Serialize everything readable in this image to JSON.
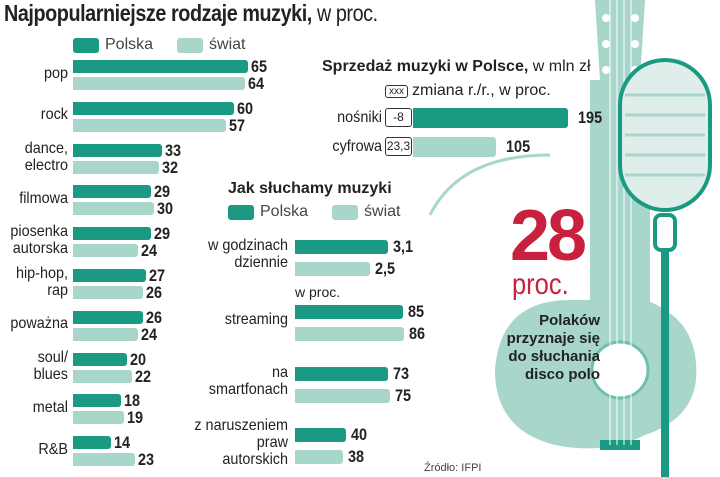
{
  "colors": {
    "polska": "#1a9a83",
    "swiat": "#a9d6ca",
    "accent": "#c8203f"
  },
  "chart_data": [
    {
      "type": "bar",
      "title": "Najpopularniejsze rodzaje muzyki,",
      "subtitle": "w proc.",
      "legend": [
        "Polska",
        "świat"
      ],
      "categories": [
        "pop",
        "rock",
        "dance,\nelectro",
        "filmowa",
        "piosenka\nautorska",
        "hip-hop,\nrap",
        "poważna",
        "soul/\nblues",
        "metal",
        "R&B"
      ],
      "series": [
        {
          "name": "Polska",
          "values": [
            65,
            60,
            33,
            29,
            29,
            27,
            26,
            20,
            18,
            14
          ]
        },
        {
          "name": "świat",
          "values": [
            64,
            57,
            32,
            30,
            24,
            26,
            24,
            22,
            19,
            23
          ]
        }
      ]
    },
    {
      "type": "bar",
      "title": "Sprzedaż muzyki w Polsce,",
      "subtitle": "w mln zł",
      "note_box": "xxx",
      "note": "zmiana r./r., w proc.",
      "categories": [
        "nośniki",
        "cyfrowa"
      ],
      "values": [
        195,
        105
      ],
      "changes": [
        "-8",
        "23,3"
      ]
    },
    {
      "type": "bar",
      "title": "Jak słuchamy muzyki",
      "legend": [
        "Polska",
        "świat"
      ],
      "sublabel": "w proc.",
      "categories": [
        "w godzinach\ndziennie",
        "streaming",
        "na\nsmartfonach",
        "z naruszeniem\npraw\nautorskich"
      ],
      "series": [
        {
          "name": "Polska",
          "values": [
            "3,1",
            85,
            73,
            40
          ]
        },
        {
          "name": "świat",
          "values": [
            "2,5",
            86,
            75,
            38
          ]
        }
      ]
    }
  ],
  "highlight": {
    "number": "28",
    "unit": "proc.",
    "text": "Polaków\nprzyznaje się\ndo słuchania\ndisco polo"
  },
  "source": "Źródło: IFPI"
}
